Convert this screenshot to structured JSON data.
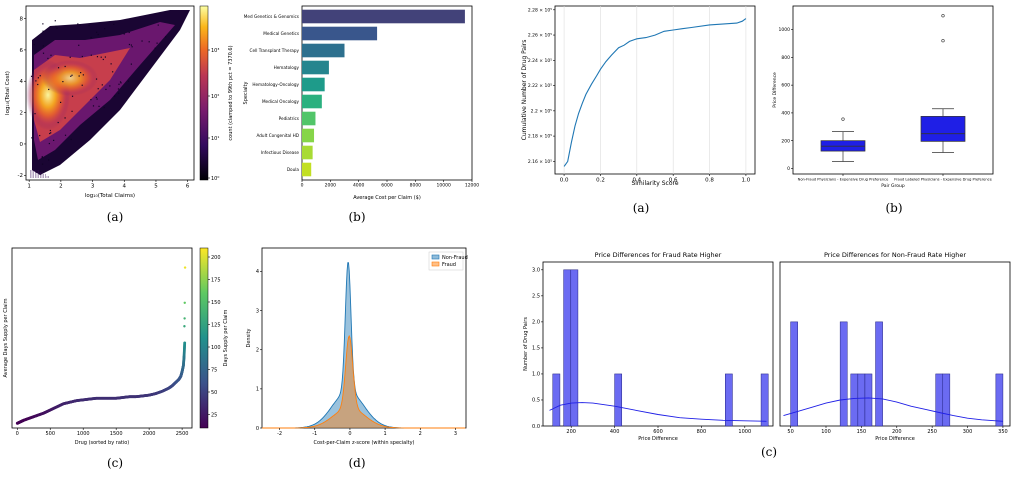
{
  "chart_data": [
    {
      "panel": "(a)",
      "type": "heatmap",
      "xlabel": "log₁₀(Total Claims)",
      "ylabel": "log₁₀(Total Cost)",
      "x_ticks": [
        "1",
        "2",
        "3",
        "4",
        "5",
        "6"
      ],
      "y_ticks": [
        "-2",
        "0",
        "2",
        "4",
        "6",
        "8"
      ],
      "xlim": [
        0.9,
        6.2
      ],
      "ylim": [
        -2.3,
        8.8
      ],
      "colorbar_label": "count (clamped to 99th pct = 7370.6)",
      "colorbar_ticks": [
        "10⁰",
        "10¹",
        "10²",
        "10³"
      ],
      "colorbar_scale": "log"
    },
    {
      "panel": "(b)",
      "type": "bar",
      "orientation": "horizontal",
      "categories": [
        "Med Genetics & Genomics",
        "Medical Genetics",
        "Cell Transplant Therapy",
        "Hematology",
        "Hematology-Oncology",
        "Medical Oncology",
        "Pediatrics",
        "Adult Congenital HD",
        "Infectious Disease",
        "Doula"
      ],
      "values": [
        11500,
        5300,
        3000,
        1900,
        1600,
        1400,
        950,
        850,
        750,
        650
      ],
      "xlabel": "Average Cost per Claim ($)",
      "ylabel": "Specialty",
      "x_ticks": [
        "0",
        "2000",
        "4000",
        "6000",
        "8000",
        "10000",
        "12000"
      ],
      "xlim": [
        0,
        12000
      ],
      "colors": [
        "#424279",
        "#39568c",
        "#2d708e",
        "#25858e",
        "#1e9b8a",
        "#2ab07f",
        "#52c569",
        "#86d549",
        "#a8db34",
        "#c2df23"
      ]
    },
    {
      "panel": "(c)",
      "type": "scatter",
      "xlabel": "Drug (sorted by ratio)",
      "ylabel": "Average Days Supply per Claim",
      "x_ticks": [
        "0",
        "500",
        "1000",
        "1500",
        "2000",
        "2500"
      ],
      "xlim": [
        -80,
        2650
      ],
      "ylim": [
        0,
        230
      ],
      "colorbar_label": "Days Supply per Claim",
      "colorbar_ticks": [
        "25",
        "50",
        "75",
        "100",
        "125",
        "150",
        "175",
        "200"
      ],
      "colorbar_range": [
        10,
        210
      ],
      "x": [
        0,
        50,
        100,
        200,
        300,
        400,
        500,
        600,
        700,
        800,
        900,
        1000,
        1100,
        1200,
        1300,
        1400,
        1500,
        1600,
        1700,
        1800,
        1900,
        2000,
        2100,
        2200,
        2300,
        2350,
        2400,
        2450,
        2480,
        2500,
        2520,
        2530,
        2540
      ],
      "y": [
        6,
        8,
        10,
        13,
        16,
        19,
        23,
        27,
        31,
        33,
        35,
        36,
        37,
        38,
        38,
        38,
        38,
        39,
        40,
        40,
        41,
        42,
        44,
        47,
        51,
        54,
        58,
        62,
        66,
        72,
        80,
        92,
        110
      ],
      "outliers": [
        {
          "x": 2535,
          "y": 130
        },
        {
          "x": 2538,
          "y": 140
        },
        {
          "x": 2540,
          "y": 160
        },
        {
          "x": 2545,
          "y": 205
        }
      ]
    },
    {
      "panel": "(d)",
      "type": "area",
      "xlabel": "Cost-per-Claim z-score (within specialty)",
      "ylabel": "Density",
      "x_ticks": [
        "-2",
        "-1",
        "0",
        "1",
        "2",
        "3"
      ],
      "y_ticks": [
        "0",
        "1",
        "2",
        "3",
        "4"
      ],
      "xlim": [
        -2.5,
        3.3
      ],
      "ylim": [
        0,
        4.6
      ],
      "legend_placement": "top-right",
      "series": [
        {
          "name": "Non-Fraud",
          "color": "#1f77b4",
          "peak_x": -0.05,
          "peak_y": 4.25,
          "sigma": 0.08,
          "tail_sigma": 0.45,
          "tail_weight": 0.55
        },
        {
          "name": "Fraud",
          "color": "#ff7f0e",
          "peak_x": -0.02,
          "peak_y": 2.35,
          "sigma": 0.1,
          "tail_sigma": 0.45,
          "tail_weight": 0.55
        }
      ]
    },
    {
      "panel": "(a)",
      "type": "line",
      "xlabel": "Similarity Score",
      "ylabel": "Cumulative Number of Drug Pairs",
      "x_ticks": [
        "0.0",
        "0.2",
        "0.4",
        "0.6",
        "0.8",
        "1.0"
      ],
      "y_ticks": [
        "2.16 × 10⁵",
        "2.18 × 10⁵",
        "2.2 × 10⁵",
        "2.22 × 10⁵",
        "2.24 × 10⁵",
        "2.26 × 10⁵",
        "2.28 × 10⁵"
      ],
      "xlim": [
        -0.05,
        1.05
      ],
      "ylim": [
        215000,
        228300
      ],
      "grid": true,
      "x": [
        0.0,
        0.02,
        0.04,
        0.06,
        0.08,
        0.1,
        0.12,
        0.15,
        0.18,
        0.2,
        0.23,
        0.26,
        0.3,
        0.33,
        0.36,
        0.4,
        0.45,
        0.5,
        0.55,
        0.6,
        0.65,
        0.7,
        0.8,
        0.9,
        0.95,
        0.98,
        1.0
      ],
      "y": [
        215600,
        216000,
        217500,
        218800,
        219800,
        220600,
        221300,
        222100,
        222800,
        223300,
        223900,
        224400,
        225000,
        225200,
        225500,
        225700,
        225800,
        226000,
        226300,
        226400,
        226500,
        226600,
        226800,
        226900,
        226950,
        227100,
        227300
      ]
    },
    {
      "panel": "(b)",
      "type": "box",
      "xlabel": "Pair Group",
      "ylabel": "Price Difference",
      "categories": [
        "Non-Fraud Physicians - Expensive Drug Preference",
        "Fraud Labeled Physicians - Expensive Drug Preference"
      ],
      "y_ticks": [
        "0",
        "200",
        "400",
        "600",
        "800",
        "1000"
      ],
      "ylim": [
        -40,
        1170
      ],
      "color": "#1f1fe6",
      "boxes": [
        {
          "min": 50,
          "q1": 125,
          "median": 160,
          "q3": 200,
          "max": 265,
          "outliers": [
            355
          ]
        },
        {
          "min": 115,
          "q1": 195,
          "median": 250,
          "q3": 375,
          "max": 430,
          "outliers": [
            920,
            1100
          ]
        }
      ]
    },
    {
      "panel": "(c)",
      "type": "bar",
      "title": "Price Differences for Fraud Rate Higher",
      "xlabel": "Price Difference",
      "ylabel": "Number of Drug Pairs",
      "x_ticks": [
        "200",
        "400",
        "600",
        "800",
        "1000"
      ],
      "y_ticks": [
        "0.0",
        "0.5",
        "1.0",
        "1.5",
        "2.0",
        "2.5",
        "3.0"
      ],
      "xlim": [
        70,
        1130
      ],
      "ylim": [
        0,
        3.15
      ],
      "bin_width": 33,
      "bin_starts": [
        115,
        165,
        198,
        400,
        910,
        1075
      ],
      "counts": [
        1,
        3,
        3,
        1,
        1,
        1
      ],
      "kde": [
        [
          100,
          0.3
        ],
        [
          150,
          0.4
        ],
        [
          200,
          0.44
        ],
        [
          250,
          0.45
        ],
        [
          300,
          0.44
        ],
        [
          400,
          0.38
        ],
        [
          500,
          0.3
        ],
        [
          600,
          0.22
        ],
        [
          700,
          0.16
        ],
        [
          800,
          0.13
        ],
        [
          900,
          0.11
        ],
        [
          1000,
          0.1
        ],
        [
          1100,
          0.09
        ]
      ],
      "color": "#6b6bf2"
    },
    {
      "panel": "(c)",
      "type": "bar",
      "title": "Price Differences for Non-Fraud Rate Higher",
      "xlabel": "Price Difference",
      "ylabel": "",
      "x_ticks": [
        "50",
        "100",
        "150",
        "200",
        "250",
        "300",
        "350"
      ],
      "y_ticks": [],
      "xlim": [
        35,
        360
      ],
      "ylim": [
        0,
        3.15
      ],
      "bin_width": 10,
      "bin_starts": [
        50,
        120,
        135,
        145,
        155,
        170,
        255,
        265,
        340
      ],
      "counts": [
        2,
        2,
        1,
        1,
        1,
        2,
        1,
        1,
        1
      ],
      "kde": [
        [
          40,
          0.2
        ],
        [
          60,
          0.28
        ],
        [
          80,
          0.36
        ],
        [
          100,
          0.44
        ],
        [
          120,
          0.5
        ],
        [
          140,
          0.53
        ],
        [
          160,
          0.54
        ],
        [
          180,
          0.52
        ],
        [
          200,
          0.46
        ],
        [
          220,
          0.38
        ],
        [
          240,
          0.32
        ],
        [
          260,
          0.26
        ],
        [
          280,
          0.2
        ],
        [
          300,
          0.15
        ],
        [
          320,
          0.12
        ],
        [
          350,
          0.09
        ]
      ],
      "color": "#6b6bf2"
    }
  ],
  "captions": [
    "(a)",
    "(b)",
    "(c)",
    "(d)",
    "(a)",
    "(b)",
    "(c)"
  ]
}
